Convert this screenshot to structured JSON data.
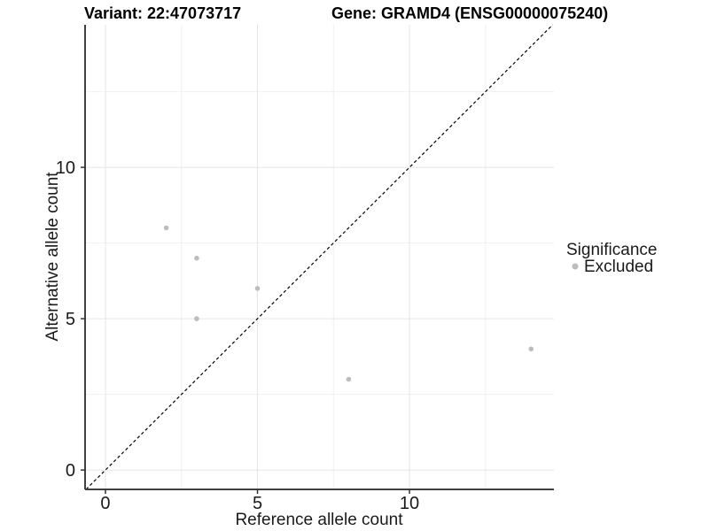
{
  "chart_data": {
    "type": "scatter",
    "title_left": "Variant: 22:47073717",
    "title_right": "Gene: GRAMD4 (ENSG00000075240)",
    "xlabel": "Reference allele count",
    "ylabel": "Alternative allele count",
    "xlim": [
      -0.67,
      14.75
    ],
    "ylim": [
      -0.64,
      14.71
    ],
    "x_ticks": [
      0,
      5,
      10
    ],
    "y_ticks": [
      0,
      5,
      10
    ],
    "x_minor_ticks": [
      2.5,
      7.5,
      12.5
    ],
    "y_minor_ticks": [
      2.5,
      7.5,
      12.5
    ],
    "grid": "major and minor gridlines on white background",
    "identity_line": {
      "slope": 1,
      "intercept": 0,
      "style": "dashed",
      "color": "#000000"
    },
    "series": [
      {
        "name": "Excluded",
        "color": "#bdbdbd",
        "point_radius": 2.8,
        "points": [
          {
            "x": 2,
            "y": 8
          },
          {
            "x": 3,
            "y": 7
          },
          {
            "x": 3,
            "y": 5
          },
          {
            "x": 5,
            "y": 6
          },
          {
            "x": 8,
            "y": 3
          },
          {
            "x": 14,
            "y": 4
          }
        ]
      }
    ],
    "legend": {
      "title": "Significance",
      "position": "right",
      "items": [
        {
          "label": "Excluded",
          "color": "#bdbdbd"
        }
      ]
    },
    "colors": {
      "background": "#ffffff",
      "axis_line": "#404040",
      "tick_mark": "#333333",
      "tick_text": "#1a1a1a",
      "grid_major": "#e5e5e5",
      "grid_minor": "#f0f0f0"
    }
  }
}
